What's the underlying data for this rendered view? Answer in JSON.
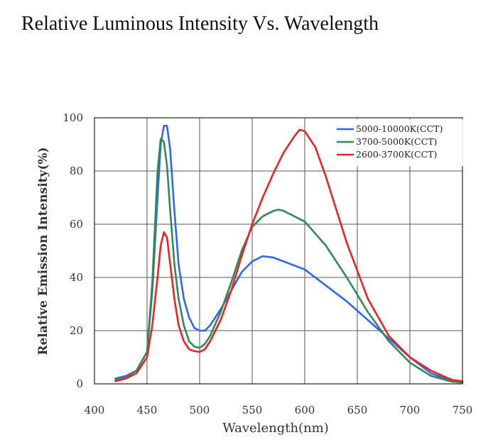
{
  "page_title": "Relative Luminous Intensity Vs. Wavelength",
  "chart_data": {
    "type": "line",
    "title": "Relative Luminous Intensity Vs. Wavelength",
    "xlabel": "Wavelength(nm)",
    "ylabel": "Relative Emission Intensity(%)",
    "xlim": [
      400,
      750
    ],
    "ylim": [
      0,
      100
    ],
    "xticks": [
      400,
      450,
      500,
      550,
      600,
      650,
      700,
      750
    ],
    "yticks": [
      0,
      20,
      40,
      60,
      80,
      100
    ],
    "grid": true,
    "legend_position": "top-right",
    "series": [
      {
        "name": "5000-10000K(CCT)",
        "color": "#3366ee",
        "x": [
          420,
          430,
          440,
          450,
          455,
          460,
          463,
          466,
          469,
          472,
          476,
          480,
          485,
          490,
          495,
          500,
          505,
          510,
          520,
          530,
          540,
          550,
          560,
          570,
          580,
          600,
          620,
          640,
          660,
          680,
          700,
          720,
          740,
          750
        ],
        "y": [
          2,
          3,
          5,
          12,
          35,
          70,
          90,
          97,
          97,
          88,
          65,
          45,
          32,
          25,
          21,
          20,
          20,
          22,
          28,
          35,
          42,
          46,
          48,
          47.5,
          46,
          43,
          37,
          31,
          24,
          17,
          10,
          4,
          1,
          0.5
        ]
      },
      {
        "name": "3700-5000K(CCT)",
        "color": "#2e8b57",
        "x": [
          420,
          430,
          440,
          450,
          455,
          460,
          463,
          466,
          469,
          472,
          476,
          480,
          485,
          490,
          495,
          500,
          505,
          510,
          520,
          530,
          540,
          550,
          560,
          570,
          575,
          580,
          590,
          600,
          620,
          640,
          660,
          680,
          700,
          720,
          740,
          750
        ],
        "y": [
          1.5,
          2.5,
          5,
          12,
          38,
          80,
          92,
          91,
          82,
          65,
          45,
          32,
          22,
          16,
          14,
          13.5,
          15,
          18,
          27,
          38,
          50,
          59,
          63,
          65,
          65.5,
          65,
          63,
          61,
          52,
          40,
          27,
          16,
          8,
          3,
          0.8,
          0.5
        ]
      },
      {
        "name": "2600-3700K(CCT)",
        "color": "#ee2222",
        "x": [
          420,
          430,
          440,
          450,
          455,
          460,
          463,
          466,
          469,
          472,
          476,
          480,
          485,
          490,
          495,
          500,
          505,
          510,
          520,
          530,
          540,
          550,
          560,
          570,
          580,
          590,
          595,
          600,
          610,
          620,
          640,
          660,
          680,
          700,
          720,
          740,
          750
        ],
        "y": [
          1,
          2,
          4,
          10,
          22,
          40,
          52,
          57,
          55,
          45,
          32,
          22,
          16,
          13,
          12.3,
          12,
          13,
          16,
          24,
          35,
          48,
          60,
          70,
          79,
          87,
          93,
          95.5,
          95,
          89,
          78,
          53,
          32,
          18,
          10,
          5,
          1.5,
          1
        ]
      }
    ]
  }
}
